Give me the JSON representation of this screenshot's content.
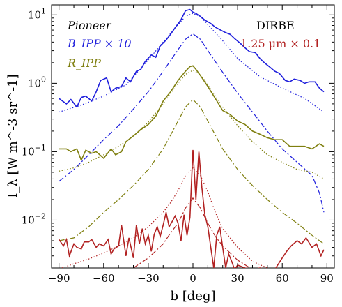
{
  "chart_data": {
    "type": "line",
    "title": "",
    "xlabel": "b [deg]",
    "ylabel": "I_λ [W m^-3 sr^-1]",
    "xlim": [
      -95,
      95
    ],
    "ylim": [
      0.002,
      14
    ],
    "yscale": "log",
    "grid": false,
    "x_ticks": [
      -90,
      -60,
      -30,
      0,
      30,
      60,
      90
    ],
    "x_tick_labels": [
      "−90",
      "−60",
      "−30",
      "0",
      "30",
      "60",
      "90"
    ],
    "y_ticks": [
      0.01,
      0.1,
      1,
      10
    ],
    "y_tick_labels": [
      "10^-2",
      "10^-1",
      "10^0",
      "10^1"
    ],
    "annotations": {
      "pioneer": "Pioneer",
      "dirbe": "DIRBE",
      "bipp": "B_IPP × 10",
      "ripp": "R_IPP",
      "dirbe_band": "1.25 μm × 0.1"
    },
    "colors": {
      "blue": "#1f1fdc",
      "olive": "#7f7f0f",
      "red": "#b22222"
    },
    "series": [
      {
        "name": "B_IPP × 10",
        "group": "blue",
        "style": "solid",
        "x": [
          -90,
          -85,
          -82,
          -78,
          -75,
          -72,
          -68,
          -65,
          -62,
          -58,
          -55,
          -52,
          -48,
          -45,
          -42,
          -38,
          -35,
          -32,
          -28,
          -25,
          -22,
          -18,
          -15,
          -12,
          -8,
          -5,
          -2,
          0,
          2,
          5,
          8,
          12,
          15,
          18,
          22,
          25,
          28,
          32,
          35,
          38,
          42,
          45,
          48,
          52,
          55,
          58,
          62,
          65,
          68,
          72,
          75,
          78,
          82,
          85,
          88
        ],
        "y": [
          0.6,
          0.5,
          0.58,
          0.45,
          0.62,
          0.65,
          0.55,
          0.75,
          1.1,
          1.2,
          0.75,
          0.85,
          0.9,
          1.2,
          1.05,
          1.5,
          1.6,
          2.1,
          2.6,
          2.4,
          3.5,
          4.3,
          5.2,
          6.5,
          8.5,
          11.5,
          12,
          11,
          10.5,
          9.5,
          8.4,
          7.5,
          6.6,
          6.1,
          5.5,
          5.2,
          4.5,
          3.8,
          3.3,
          2.9,
          2.8,
          2.3,
          2.0,
          1.7,
          1.5,
          1.4,
          1.1,
          1.05,
          1.15,
          1.1,
          1.0,
          1.05,
          1.05,
          0.85,
          0.75
        ]
      },
      {
        "name": "B_IPP × 10 (model)",
        "group": "blue",
        "style": "dotted",
        "x": [
          -90,
          -75,
          -60,
          -45,
          -30,
          -20,
          -10,
          -5,
          0,
          5,
          10,
          20,
          30,
          45,
          60,
          75,
          88
        ],
        "y": [
          0.38,
          0.48,
          0.65,
          0.95,
          2.2,
          4.0,
          7.2,
          9.5,
          10.5,
          9.5,
          7.2,
          4.2,
          2.3,
          1.25,
          0.85,
          0.6,
          0.38
        ]
      },
      {
        "name": "B_IPP × 10 (alt)",
        "group": "blue",
        "style": "dashdot",
        "x": [
          -90,
          -80,
          -70,
          -60,
          -50,
          -40,
          -30,
          -20,
          -10,
          -5,
          0,
          5,
          10,
          20,
          30,
          40,
          50,
          60,
          70,
          80,
          85,
          88
        ],
        "y": [
          0.037,
          0.055,
          0.09,
          0.15,
          0.24,
          0.42,
          0.75,
          1.5,
          3.1,
          4.4,
          5.3,
          4.4,
          3.0,
          1.45,
          0.72,
          0.38,
          0.2,
          0.11,
          0.07,
          0.045,
          0.025,
          0.013
        ]
      },
      {
        "name": "R_IPP",
        "group": "olive",
        "style": "solid",
        "x": [
          -90,
          -85,
          -82,
          -78,
          -75,
          -72,
          -68,
          -65,
          -60,
          -55,
          -52,
          -48,
          -45,
          -40,
          -35,
          -30,
          -25,
          -20,
          -15,
          -10,
          -5,
          -2,
          0,
          2,
          5,
          10,
          15,
          20,
          25,
          30,
          35,
          40,
          45,
          50,
          55,
          60,
          65,
          70,
          75,
          80,
          85,
          88
        ],
        "y": [
          0.11,
          0.11,
          0.1,
          0.11,
          0.075,
          0.105,
          0.095,
          0.1,
          0.08,
          0.11,
          0.09,
          0.1,
          0.14,
          0.17,
          0.21,
          0.25,
          0.33,
          0.55,
          0.75,
          1.1,
          1.5,
          1.75,
          1.8,
          1.6,
          1.3,
          0.9,
          0.6,
          0.4,
          0.35,
          0.28,
          0.25,
          0.2,
          0.18,
          0.16,
          0.15,
          0.15,
          0.12,
          0.12,
          0.12,
          0.11,
          0.13,
          0.12
        ]
      },
      {
        "name": "R_IPP (model)",
        "group": "olive",
        "style": "dotted",
        "x": [
          -90,
          -80,
          -70,
          -60,
          -50,
          -40,
          -30,
          -20,
          -10,
          -5,
          0,
          5,
          10,
          20,
          30,
          40,
          50,
          60,
          70,
          80,
          88
        ],
        "y": [
          0.052,
          0.058,
          0.07,
          0.09,
          0.12,
          0.17,
          0.27,
          0.5,
          1.0,
          1.35,
          1.55,
          1.35,
          0.95,
          0.45,
          0.24,
          0.14,
          0.09,
          0.07,
          0.055,
          0.05,
          0.04
        ]
      },
      {
        "name": "R_IPP (alt)",
        "group": "olive",
        "style": "dashdot",
        "x": [
          -90,
          -80,
          -70,
          -60,
          -50,
          -40,
          -30,
          -20,
          -10,
          -5,
          0,
          5,
          10,
          20,
          30,
          40,
          50,
          60,
          70,
          80,
          88
        ],
        "y": [
          0.005,
          0.0055,
          0.008,
          0.013,
          0.02,
          0.032,
          0.055,
          0.11,
          0.28,
          0.45,
          0.58,
          0.45,
          0.28,
          0.11,
          0.055,
          0.032,
          0.02,
          0.013,
          0.009,
          0.006,
          0.0045
        ]
      },
      {
        "name": "1.25 μm × 0.1",
        "group": "red",
        "style": "solid",
        "x": [
          -90,
          -87,
          -85,
          -83,
          -80,
          -78,
          -75,
          -73,
          -70,
          -68,
          -65,
          -63,
          -60,
          -57,
          -55,
          -53,
          -50,
          -48,
          -45,
          -43,
          -40,
          -38,
          -36,
          -34,
          -32,
          -30,
          -28,
          -26,
          -24,
          -22,
          -20,
          -18,
          -16,
          -14,
          -12,
          -10,
          -8,
          -6,
          -4,
          -2,
          0,
          2,
          4,
          6,
          8,
          10,
          12,
          14,
          16,
          18,
          20,
          22,
          24,
          26,
          28,
          30,
          35,
          40,
          45,
          50,
          55,
          60,
          63,
          66,
          70,
          73,
          76,
          80,
          83,
          86,
          88
        ],
        "y": [
          0.0052,
          0.0042,
          0.0052,
          0.003,
          0.0045,
          0.004,
          0.0038,
          0.0048,
          0.0048,
          0.0052,
          0.004,
          0.0045,
          0.0042,
          0.0052,
          0.0032,
          0.0038,
          0.0042,
          0.0085,
          0.003,
          0.0055,
          0.0028,
          0.0085,
          0.0045,
          0.0075,
          0.0045,
          0.006,
          0.0035,
          0.0062,
          0.008,
          0.0058,
          0.0085,
          0.013,
          0.008,
          0.0095,
          0.0115,
          0.009,
          0.005,
          0.012,
          0.006,
          0.011,
          0.106,
          0.02,
          0.1,
          0.03,
          0.012,
          0.008,
          0.004,
          0.002,
          0.006,
          0.008,
          0.004,
          0.002,
          0.0032,
          0.0025,
          0.0019,
          0.0022,
          0.002,
          0.0019,
          0.002,
          0.0019,
          0.0019,
          0.0028,
          0.0035,
          0.0042,
          0.005,
          0.0045,
          0.0055,
          0.004,
          0.0045,
          0.003,
          0.0037
        ]
      },
      {
        "name": "1.25 μm × 0.1 (model)",
        "group": "red",
        "style": "dotted",
        "x": [
          -88,
          -80,
          -70,
          -60,
          -50,
          -40,
          -30,
          -20,
          -15,
          -10,
          -5,
          0,
          5,
          10,
          15,
          20,
          30,
          40,
          50
        ],
        "y": [
          0.002,
          0.0023,
          0.0027,
          0.0033,
          0.0042,
          0.0055,
          0.008,
          0.013,
          0.018,
          0.027,
          0.045,
          0.058,
          0.045,
          0.026,
          0.013,
          0.0075,
          0.004,
          0.0025,
          0.002
        ]
      },
      {
        "name": "1.25 μm × 0.1 (alt)",
        "group": "red",
        "style": "dashdot",
        "x": [
          -40,
          -30,
          -20,
          -15,
          -10,
          -5,
          0,
          5,
          10,
          15,
          20,
          30,
          40
        ],
        "y": [
          0.002,
          0.0028,
          0.0045,
          0.0065,
          0.009,
          0.015,
          0.021,
          0.015,
          0.009,
          0.0058,
          0.0042,
          0.0026,
          0.0019
        ]
      }
    ]
  }
}
